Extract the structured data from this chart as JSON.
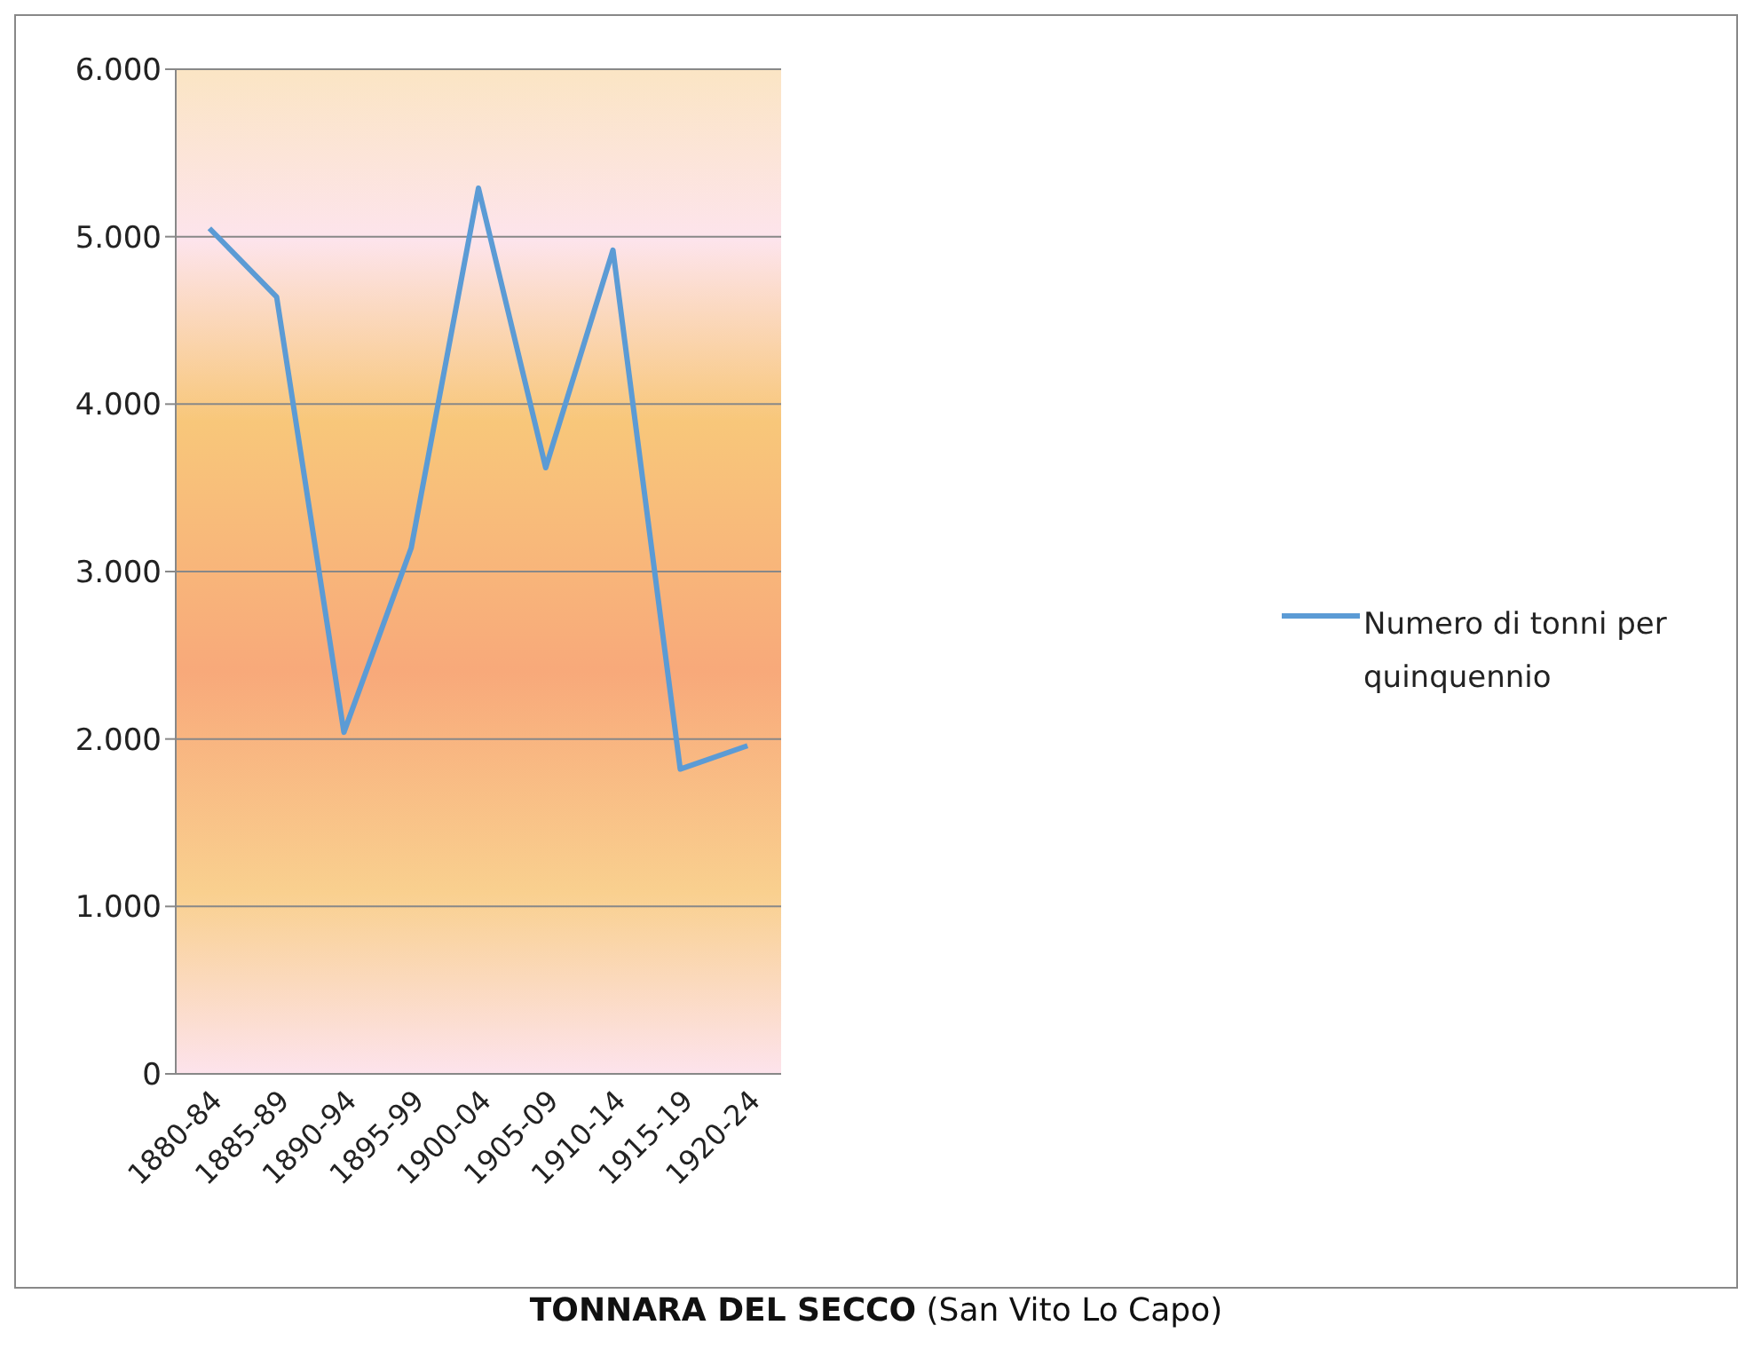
{
  "chart_data": {
    "type": "line",
    "title": "TONNARA DEL SECCO",
    "subtitle": "(San Vito Lo Capo)",
    "categories": [
      "1880-84",
      "1885-89",
      "1890-94",
      "1895-99",
      "1900-04",
      "1905-09",
      "1910-14",
      "1915-19",
      "1920-24"
    ],
    "series": [
      {
        "name": "Numero di tonni per quinquennio",
        "color": "#5b9bd5",
        "values": [
          5050,
          4640,
          2040,
          3140,
          5290,
          3620,
          4920,
          1820,
          1960
        ]
      }
    ],
    "ylim": [
      0,
      6000
    ],
    "yticks": [
      {
        "value": 0,
        "label": "0"
      },
      {
        "value": 1000,
        "label": "1.000"
      },
      {
        "value": 2000,
        "label": "2.000"
      },
      {
        "value": 3000,
        "label": "3.000"
      },
      {
        "value": 4000,
        "label": "4.000"
      },
      {
        "value": 5000,
        "label": "5.000"
      },
      {
        "value": 6000,
        "label": "6.000"
      }
    ],
    "grid": "y",
    "legend": "right",
    "marker": "none",
    "line_style": "solid"
  }
}
